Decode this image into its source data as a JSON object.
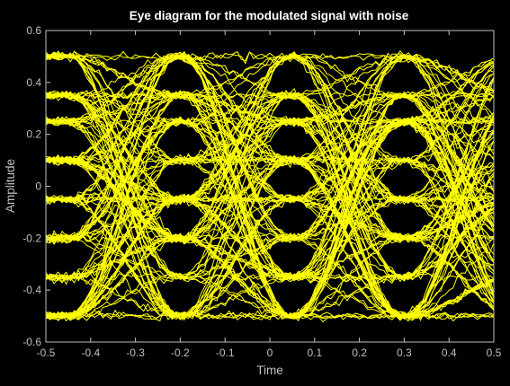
{
  "chart_data": {
    "type": "line",
    "title": "Eye diagram for the modulated signal with noise",
    "xlabel": "Time",
    "ylabel": "Amplitude",
    "xlim": [
      -0.5,
      0.5
    ],
    "ylim": [
      -0.6,
      0.6
    ],
    "xticks": [
      -0.5,
      -0.4,
      -0.3,
      -0.2,
      -0.1,
      0,
      0.1,
      0.2,
      0.3,
      0.4,
      0.5
    ],
    "xtick_labels": [
      "-0.5",
      "-0.4",
      "-0.3",
      "-0.2",
      "-0.1",
      "0",
      "0.1",
      "0.2",
      "0.3",
      "0.4",
      "0.5"
    ],
    "yticks": [
      -0.6,
      -0.4,
      -0.2,
      0,
      0.2,
      0.4,
      0.6
    ],
    "ytick_labels": [
      "-0.6",
      "-0.4",
      "-0.2",
      "0",
      "0.2",
      "0.4",
      "0.6"
    ],
    "grid": false,
    "levels": [
      -0.5,
      -0.35,
      -0.2,
      -0.05,
      0.1,
      0.25,
      0.35,
      0.5
    ],
    "sampling_instants": [
      -0.2,
      0.05,
      0.3
    ],
    "noise_std": 0.008,
    "trace_color": "#ffff00",
    "background": "#000000",
    "axis_color": "#c0c0c0",
    "title_color": "#ffffff"
  }
}
